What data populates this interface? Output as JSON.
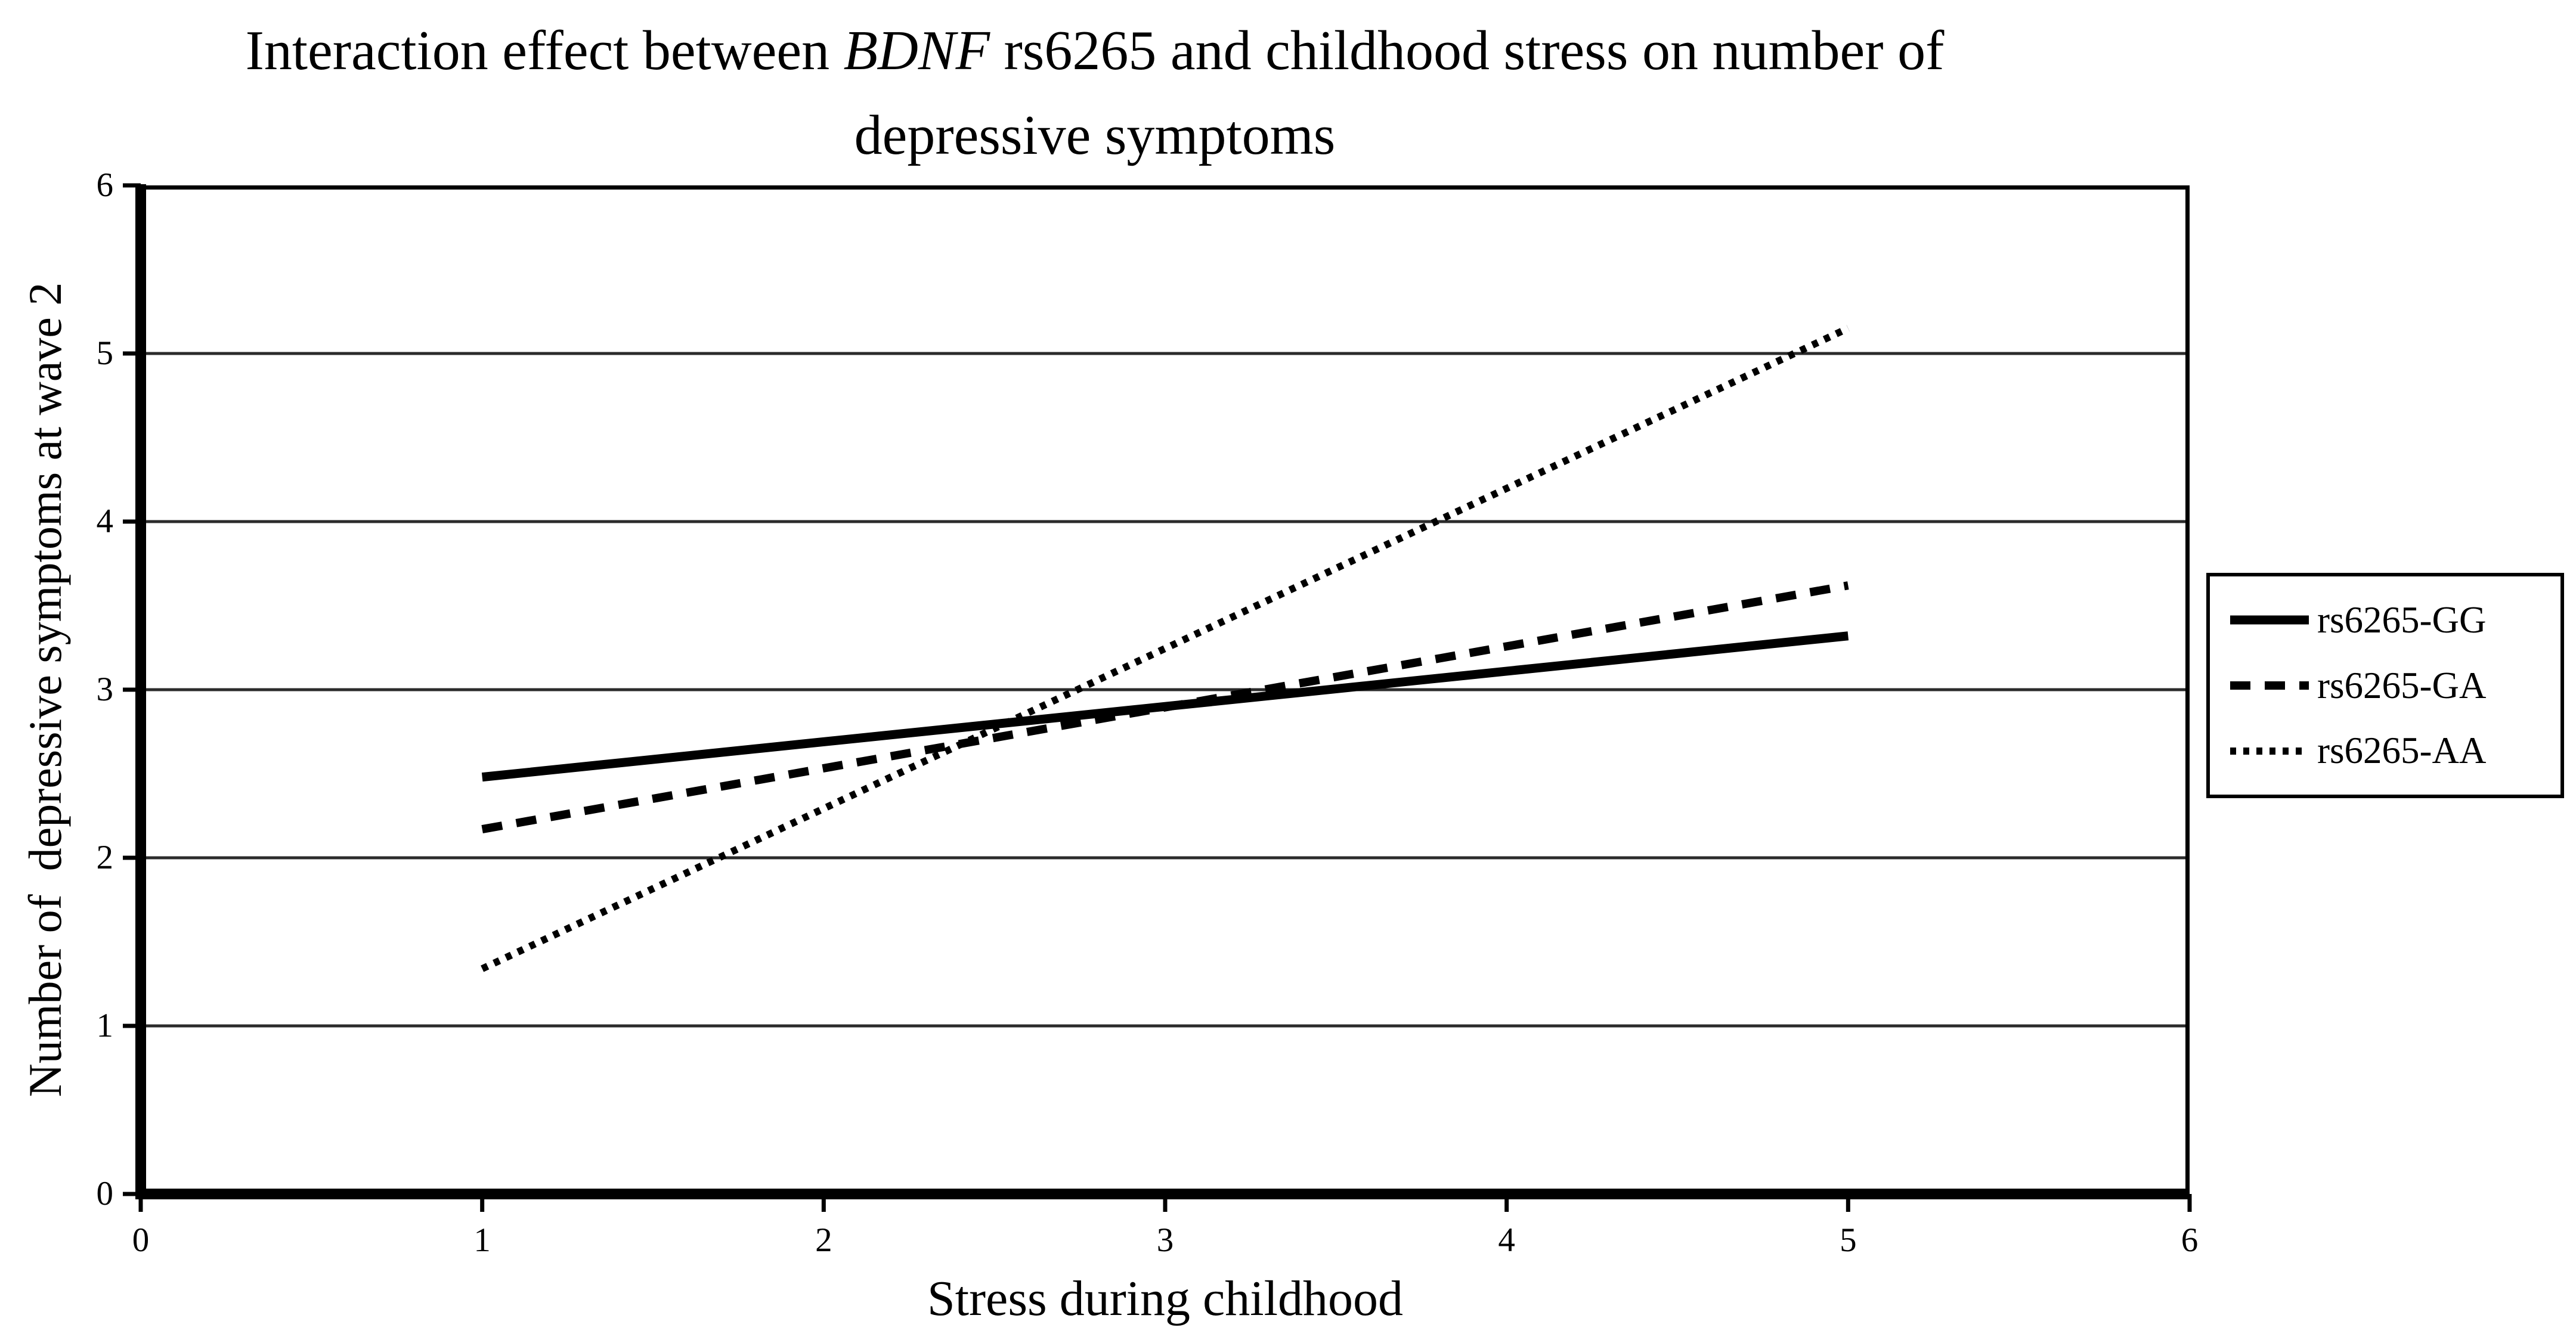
{
  "title": {
    "line1_prefix": "Interaction effect between ",
    "line1_italic": "BDNF",
    "line1_suffix": " rs6265 and childhood stress on number of",
    "line2": "depressive symptoms"
  },
  "axes": {
    "x_label": "Stress during childhood",
    "y_label": "Number of  depressive symptoms at wave 2"
  },
  "chart_data": {
    "type": "line",
    "title": "Interaction effect between BDNF rs6265 and childhood stress on number of depressive symptoms",
    "xlabel": "Stress during childhood",
    "ylabel": "Number of  depressive symptoms at wave 2",
    "xlim": [
      0,
      6
    ],
    "ylim": [
      0,
      6
    ],
    "xticks": [
      0,
      1,
      2,
      3,
      4,
      5,
      6
    ],
    "yticks": [
      0,
      1,
      2,
      3,
      4,
      5,
      6
    ],
    "grid": "horizontal-only",
    "legend_position": "right-outside",
    "series": [
      {
        "name": "rs6265-GG",
        "line_style": "solid",
        "color": "#000000",
        "x": [
          1,
          5
        ],
        "y": [
          2.48,
          3.32
        ]
      },
      {
        "name": "rs6265-GA",
        "line_style": "dashed",
        "color": "#000000",
        "x": [
          1,
          5
        ],
        "y": [
          2.17,
          3.62
        ]
      },
      {
        "name": "rs6265-AA",
        "line_style": "dotted",
        "color": "#000000",
        "x": [
          1,
          5
        ],
        "y": [
          1.34,
          5.15
        ]
      }
    ]
  },
  "colors": {
    "background": "#ffffff",
    "axis": "#000000",
    "grid": "#2b2b2b",
    "text": "#000000"
  }
}
